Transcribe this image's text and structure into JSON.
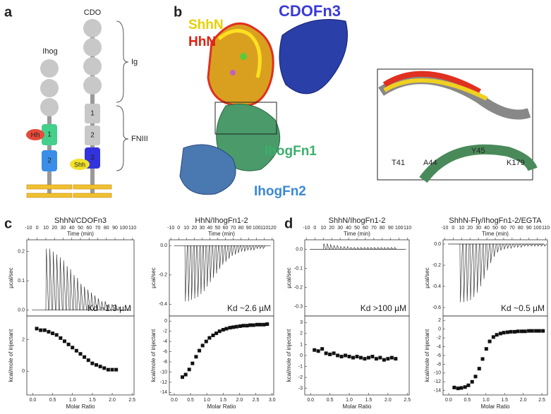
{
  "panel_a": {
    "label": "a",
    "ihog": {
      "name": "Ihog",
      "domains": [
        "1",
        "2"
      ],
      "ligand": "Hh"
    },
    "cdo": {
      "name": "CDO",
      "domains": [
        "1",
        "2",
        "3"
      ],
      "ligand": "Shh"
    },
    "braces": [
      "Ig",
      "FNIII"
    ]
  },
  "panel_b": {
    "label": "b",
    "molecules": [
      "ShhN",
      "HhN",
      "CDOFn3",
      "IhogFn1",
      "IhogFn2"
    ],
    "residues": [
      "T41",
      "A44",
      "Y45",
      "K179"
    ]
  },
  "panel_c": {
    "label": "c"
  },
  "panel_d": {
    "label": "d"
  },
  "itc": [
    {
      "title": "ShhN/CDOFn3",
      "time_label": "Time (min)",
      "time_lim": [
        -12,
        112
      ],
      "time_ticks": [
        -10,
        0,
        10,
        20,
        30,
        40,
        50,
        60,
        70,
        80,
        90,
        100,
        110
      ],
      "power_label": "µcal/sec",
      "power_lim": [
        -0.02,
        0.24
      ],
      "power_ticks": [
        {
          "value": 0,
          "label": "0.0"
        },
        0.1,
        0.2
      ],
      "injection_times": [
        10,
        14,
        18,
        22,
        26,
        30,
        34,
        38,
        42,
        46,
        50,
        54,
        58,
        62,
        66,
        70,
        74,
        78,
        82,
        86,
        90,
        94
      ],
      "peaks": [
        0.21,
        0.21,
        0.2,
        0.19,
        0.18,
        0.17,
        0.15,
        0.14,
        0.12,
        0.11,
        0.09,
        0.08,
        0.07,
        0.06,
        0.05,
        0.04,
        0.03,
        0.03,
        0.02,
        0.02,
        0.02,
        0.01
      ],
      "kd": "Kd ~1.3 µM",
      "heat_label": "kcal/mole of injectant",
      "heat_lim": [
        -1.5,
        3.5
      ],
      "heat_ticks": [
        0,
        2
      ],
      "ratio_label": "Molar Ratio",
      "ratio_lim": [
        -0.15,
        2.55
      ],
      "ratio_ticks": [
        {
          "value": 0,
          "label": "0.0"
        },
        0.5,
        {
          "value": 1,
          "label": "1.0"
        },
        1.5,
        {
          "value": 2,
          "label": "2.0"
        },
        2.5
      ],
      "ratio": [
        0.1,
        0.2,
        0.3,
        0.4,
        0.5,
        0.6,
        0.7,
        0.8,
        0.9,
        1.0,
        1.1,
        1.2,
        1.3,
        1.4,
        1.5,
        1.6,
        1.7,
        1.8,
        1.9,
        2.0,
        2.1
      ],
      "heats": [
        2.7,
        2.6,
        2.6,
        2.5,
        2.4,
        2.3,
        2.1,
        1.9,
        1.7,
        1.5,
        1.3,
        1.1,
        0.9,
        0.7,
        0.5,
        0.4,
        0.3,
        0.2,
        0.1,
        0.1,
        0.1
      ]
    },
    {
      "title": "HhN/IhogFn1-2",
      "time_label": "Time (min)",
      "time_lim": [
        -12,
        122
      ],
      "time_ticks": [
        -10,
        0,
        10,
        20,
        30,
        40,
        50,
        60,
        70,
        80,
        90,
        100,
        110,
        120
      ],
      "power_label": "µcal/sec",
      "power_lim": [
        -0.48,
        0.04
      ],
      "power_ticks": [
        {
          "value": 0,
          "label": "0.0"
        },
        -0.2,
        -0.4
      ],
      "injection_times": [
        8,
        12,
        16,
        20,
        24,
        28,
        32,
        36,
        40,
        44,
        48,
        52,
        56,
        60,
        64,
        68,
        72,
        76,
        80,
        84,
        88,
        92,
        96,
        100,
        104,
        108
      ],
      "peaks": [
        -0.38,
        -0.38,
        -0.37,
        -0.36,
        -0.35,
        -0.33,
        -0.31,
        -0.28,
        -0.25,
        -0.22,
        -0.19,
        -0.16,
        -0.13,
        -0.11,
        -0.09,
        -0.07,
        -0.06,
        -0.05,
        -0.04,
        -0.04,
        -0.03,
        -0.03,
        -0.03,
        -0.02,
        -0.02,
        -0.02
      ],
      "kd": "Kd ~2.6 µM",
      "heat_label": "kcal/mole of injectant",
      "heat_lim": [
        -14.5,
        1
      ],
      "heat_ticks": [
        0,
        -2,
        -4,
        -6,
        -8,
        -10,
        -12,
        -14
      ],
      "ratio_label": "Molar Ratio",
      "ratio_lim": [
        -0.15,
        3.05
      ],
      "ratio_ticks": [
        {
          "value": 0,
          "label": "0.0"
        },
        0.5,
        {
          "value": 1,
          "label": "1.0"
        },
        1.5,
        {
          "value": 2,
          "label": "2.0"
        },
        2.5,
        {
          "value": 3,
          "label": "3.0"
        }
      ],
      "ratio": [
        0.25,
        0.35,
        0.46,
        0.56,
        0.67,
        0.77,
        0.87,
        0.98,
        1.08,
        1.19,
        1.29,
        1.39,
        1.5,
        1.6,
        1.71,
        1.81,
        1.91,
        2.02,
        2.12,
        2.23,
        2.33,
        2.43,
        2.54,
        2.64,
        2.75,
        2.85
      ],
      "heats": [
        -11,
        -10.5,
        -9.5,
        -8.3,
        -7,
        -5.8,
        -4.8,
        -4,
        -3.3,
        -2.8,
        -2.4,
        -2,
        -1.7,
        -1.5,
        -1.3,
        -1.2,
        -1.1,
        -1,
        -0.9,
        -0.9,
        -0.8,
        -0.8,
        -0.7,
        -0.7,
        -0.7,
        -0.6
      ]
    },
    {
      "title": "ShhN/IhogFn1-2",
      "time_label": "Time (min)",
      "time_lim": [
        -12,
        112
      ],
      "time_ticks": [
        -10,
        0,
        10,
        20,
        30,
        40,
        50,
        60,
        70,
        80,
        90,
        100,
        110
      ],
      "power_label": "µcal/sec",
      "power_lim": [
        -0.35,
        0.05
      ],
      "power_ticks": [
        {
          "value": 0,
          "label": "0.0"
        },
        -0.1,
        -0.2,
        -0.3
      ],
      "injection_times": [
        10,
        14,
        18,
        22,
        26,
        30,
        34,
        38,
        42,
        46,
        50,
        54,
        58,
        62,
        66,
        70,
        74,
        78,
        82,
        86,
        90,
        94
      ],
      "peaks": [
        0.03,
        0.03,
        0.025,
        0.02,
        0.02,
        0.015,
        0.015,
        0.015,
        0.01,
        0.01,
        0.01,
        0.01,
        0.01,
        0.01,
        0.01,
        0.01,
        0.01,
        0.01,
        0.01,
        0.01,
        0.01,
        0.01
      ],
      "kd": "Kd >100 µM",
      "heat_label": "kcal/mole of injectant",
      "heat_lim": [
        -3.6,
        3.6
      ],
      "heat_ticks": [
        3,
        2,
        1,
        0,
        -1,
        -2,
        -3
      ],
      "ratio_label": "Molar Ratio",
      "ratio_lim": [
        -0.15,
        2.55
      ],
      "ratio_ticks": [
        {
          "value": 0,
          "label": "0.0"
        },
        0.5,
        {
          "value": 1,
          "label": "1.0"
        },
        1.5,
        {
          "value": 2,
          "label": "2.0"
        },
        2.5
      ],
      "ratio": [
        0.1,
        0.2,
        0.3,
        0.4,
        0.5,
        0.6,
        0.7,
        0.8,
        0.9,
        1.0,
        1.1,
        1.2,
        1.3,
        1.4,
        1.5,
        1.6,
        1.7,
        1.8,
        1.9,
        2.0,
        2.1,
        2.2
      ],
      "heats": [
        0.5,
        0.4,
        0.6,
        0.2,
        0.1,
        0.2,
        0,
        -0.1,
        0,
        -0.1,
        -0.2,
        -0.1,
        -0.2,
        -0.3,
        -0.2,
        -0.1,
        -0.3,
        -0.2,
        -0.4,
        -0.3,
        -0.2,
        -0.3
      ]
    },
    {
      "title": "ShhN-Fly/IhogFn1-2/EGTA",
      "time_label": "Time (min)",
      "time_lim": [
        -12,
        112
      ],
      "time_ticks": [
        -10,
        0,
        10,
        20,
        30,
        40,
        50,
        60,
        70,
        80,
        90,
        100,
        110
      ],
      "power_label": "µcal/sec",
      "power_lim": [
        -0.68,
        0.04
      ],
      "power_ticks": [
        {
          "value": 0,
          "label": "0.0"
        },
        -0.2,
        -0.4,
        -0.6
      ],
      "injection_times": [
        8,
        12,
        16,
        20,
        24,
        28,
        32,
        36,
        40,
        44,
        48,
        52,
        56,
        60,
        64,
        68,
        72,
        76,
        80,
        84,
        88,
        92,
        96,
        100,
        104,
        108
      ],
      "peaks": [
        -0.55,
        -0.55,
        -0.54,
        -0.53,
        -0.5,
        -0.46,
        -0.4,
        -0.33,
        -0.25,
        -0.18,
        -0.12,
        -0.08,
        -0.06,
        -0.05,
        -0.04,
        -0.04,
        -0.03,
        -0.03,
        -0.03,
        -0.02,
        -0.02,
        -0.02,
        -0.02,
        -0.02,
        -0.02,
        -0.02
      ],
      "kd": "Kd ~0.5 µM",
      "heat_label": "kcal/mole of injectant",
      "heat_lim": [
        -15,
        3
      ],
      "heat_ticks": [
        2,
        0,
        -2,
        -4,
        -6,
        -8,
        -10,
        -12,
        -14
      ],
      "ratio_label": "Molar Ratio",
      "ratio_lim": [
        -0.15,
        2.65
      ],
      "ratio_ticks": [
        {
          "value": 0,
          "label": "0.0"
        },
        0.5,
        {
          "value": 1,
          "label": "1.0"
        },
        1.5,
        {
          "value": 2,
          "label": "2.0"
        },
        2.5
      ],
      "ratio": [
        0.15,
        0.25,
        0.34,
        0.44,
        0.53,
        0.63,
        0.72,
        0.82,
        0.91,
        1.01,
        1.1,
        1.2,
        1.29,
        1.39,
        1.48,
        1.58,
        1.67,
        1.77,
        1.86,
        1.96,
        2.05,
        2.15,
        2.24,
        2.34,
        2.43,
        2.53
      ],
      "heats": [
        -13.3,
        -13.5,
        -13.4,
        -13.2,
        -12.8,
        -12,
        -10.8,
        -9,
        -6.8,
        -4.5,
        -2.8,
        -1.8,
        -1.3,
        -1,
        -0.8,
        -0.7,
        -0.6,
        -0.6,
        -0.5,
        -0.5,
        -0.5,
        -0.4,
        -0.4,
        -0.4,
        -0.4,
        -0.4
      ]
    }
  ]
}
